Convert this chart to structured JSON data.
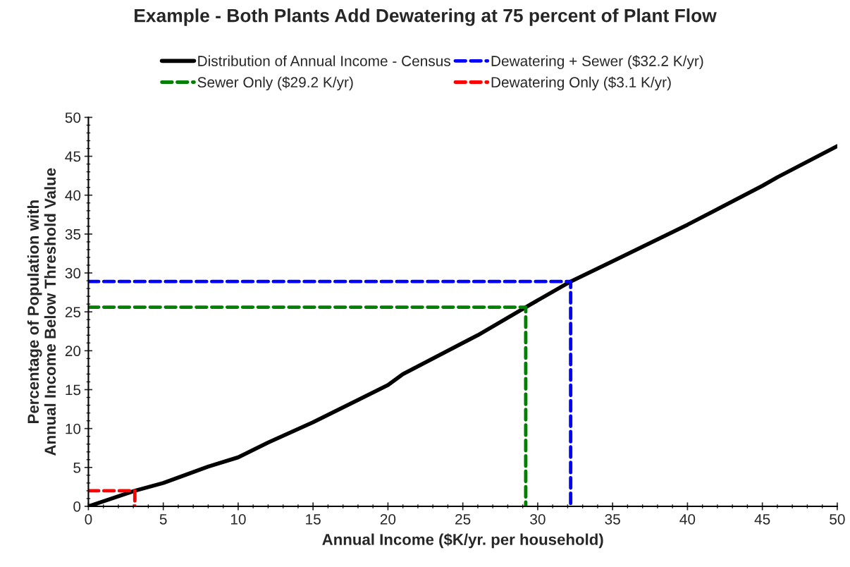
{
  "chart_data": {
    "type": "line",
    "title": "Example - Both Plants Add Dewatering at 75 percent of Plant Flow",
    "xlabel": "Annual Income ($K/yr. per household)",
    "ylabel": "Percentage of Population with\nAnnual Income Below Threshold Value",
    "xlim": [
      0,
      50
    ],
    "ylim": [
      0,
      50
    ],
    "xticks": [
      0,
      5,
      10,
      15,
      20,
      25,
      30,
      35,
      40,
      45,
      50
    ],
    "yticks": [
      0,
      5,
      10,
      15,
      20,
      25,
      30,
      35,
      40,
      45,
      50
    ],
    "grid": false,
    "legend": "top",
    "marker": "none",
    "series": [
      {
        "name": "Distribution of Annual Income - Census",
        "color": "#000000",
        "line_style": "solid",
        "x": [
          0,
          3.1,
          5,
          8,
          10,
          12,
          15,
          20,
          21,
          25,
          26,
          29.2,
          32.2,
          35,
          40,
          45,
          46,
          50
        ],
        "values": [
          0,
          2.0,
          3.0,
          5.1,
          6.3,
          8.2,
          10.8,
          15.6,
          17,
          21,
          22,
          25.6,
          28.9,
          31.5,
          36.2,
          41.2,
          42.3,
          46.3
        ]
      },
      {
        "name": "Dewatering + Sewer ($32.2 K/yr)",
        "color": "#0000ff",
        "line_style": "dashed",
        "x": [
          0,
          32.2,
          32.2
        ],
        "values": [
          28.9,
          28.9,
          0
        ]
      },
      {
        "name": "Sewer Only ($29.2 K/yr)",
        "color": "#008000",
        "line_style": "dashed",
        "x": [
          0,
          29.2,
          29.2
        ],
        "values": [
          25.6,
          25.6,
          0
        ]
      },
      {
        "name": "Dewatering Only ($3.1 K/yr)",
        "color": "#ff0000",
        "line_style": "dashed",
        "x": [
          0,
          3.1,
          3.1
        ],
        "values": [
          2.0,
          2.0,
          0
        ]
      }
    ]
  }
}
